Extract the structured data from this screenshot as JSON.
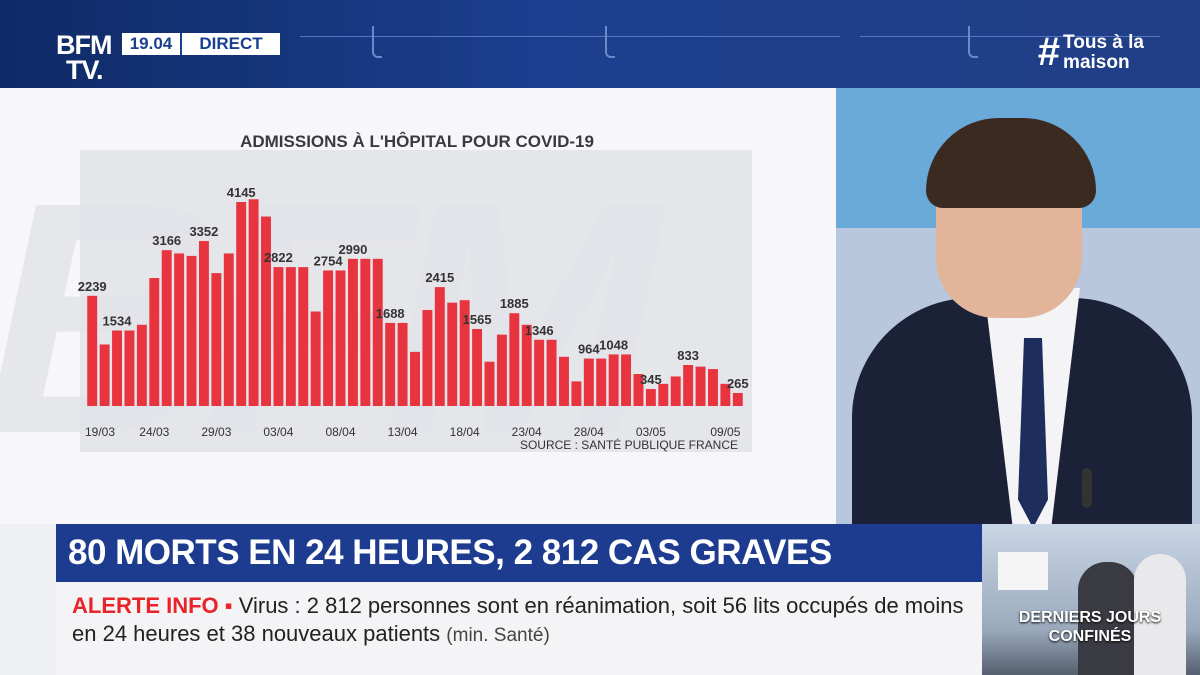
{
  "header": {
    "logo_line1": "BFM",
    "logo_line2": "TV.",
    "time": "19.04",
    "live": "DIRECT",
    "hashtag_symbol": "#",
    "hashtag_line1": "Tous à la",
    "hashtag_line2": "maison"
  },
  "headline": "80 MORTS EN 24 HEURES, 2 812 CAS GRAVES",
  "ticker": {
    "label": "ALERTE INFO ▪",
    "text": "Virus : 2 812 personnes sont en réanimation, soit 56 lits occupés de moins en 24 heures et 38 nouveaux patients",
    "source": "(min. Santé)"
  },
  "thumbnail": {
    "caption_line1": "DERNIERS JOURS",
    "caption_line2": "CONFINÉS"
  },
  "colors": {
    "brand_blue": "#1e3c8f",
    "bar_red": "#e8343f",
    "alert_red": "#e8232a"
  },
  "chart_data": {
    "type": "bar",
    "title": "ADMISSIONS À L'HÔPITAL POUR COVID-19",
    "source": "SOURCE : SANTÉ PUBLIQUE FRANCE",
    "x_tick_labels": [
      "19/03",
      "24/03",
      "29/03",
      "03/04",
      "08/04",
      "13/04",
      "18/04",
      "23/04",
      "28/04",
      "03/05",
      "09/05"
    ],
    "x_tick_index": [
      0,
      5,
      10,
      15,
      20,
      25,
      30,
      35,
      40,
      45,
      51
    ],
    "values": [
      2239,
      1250,
      1534,
      1534,
      1650,
      2600,
      3166,
      3100,
      3050,
      3352,
      2700,
      3100,
      4145,
      4200,
      3850,
      2822,
      2822,
      2822,
      1920,
      2754,
      2754,
      2990,
      2990,
      2990,
      1688,
      1688,
      1100,
      1950,
      2415,
      2100,
      2150,
      1565,
      900,
      1450,
      1885,
      1650,
      1346,
      1346,
      1000,
      500,
      964,
      964,
      1048,
      1048,
      650,
      345,
      450,
      600,
      833,
      800,
      750,
      450,
      265
    ],
    "data_labels": [
      {
        "index": 0,
        "label": "2239"
      },
      {
        "index": 2,
        "label": "1534"
      },
      {
        "index": 6,
        "label": "3166"
      },
      {
        "index": 9,
        "label": "3352"
      },
      {
        "index": 12,
        "label": "4145"
      },
      {
        "index": 15,
        "label": "2822"
      },
      {
        "index": 19,
        "label": "2754"
      },
      {
        "index": 21,
        "label": "2990"
      },
      {
        "index": 24,
        "label": "1688"
      },
      {
        "index": 28,
        "label": "2415"
      },
      {
        "index": 31,
        "label": "1565"
      },
      {
        "index": 34,
        "label": "1885"
      },
      {
        "index": 36,
        "label": "1346"
      },
      {
        "index": 40,
        "label": "964"
      },
      {
        "index": 42,
        "label": "1048"
      },
      {
        "index": 45,
        "label": "345"
      },
      {
        "index": 48,
        "label": "833"
      },
      {
        "index": 52,
        "label": "265"
      }
    ],
    "ylim": [
      0,
      4400
    ],
    "grid": false,
    "xlabel": "",
    "ylabel": ""
  }
}
